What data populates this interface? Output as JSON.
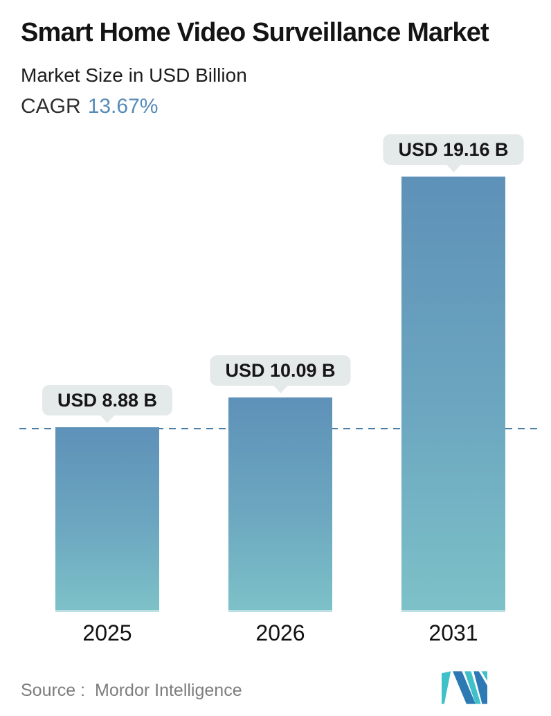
{
  "header": {
    "title": "Smart Home Video Surveillance Market",
    "subtitle": "Market Size in USD Billion",
    "cagr_label": "CAGR",
    "cagr_value": "13.67%"
  },
  "chart_data": {
    "type": "bar",
    "title": "Smart Home Video Surveillance Market",
    "subtitle": "Market Size in USD Billion",
    "unit": "USD Billion",
    "cagr_percent": 13.67,
    "categories": [
      "2025",
      "2026",
      "2031"
    ],
    "values": [
      8.88,
      10.09,
      19.16
    ],
    "points": [
      {
        "year": "2025",
        "value": 8.88,
        "label": "USD 8.88 B"
      },
      {
        "year": "2026",
        "value": 10.09,
        "label": "USD 10.09 B"
      },
      {
        "year": "2031",
        "value": 19.16,
        "label": "USD 19.16 B"
      }
    ],
    "reference_line": {
      "style": "dashed",
      "at_value": 8.88
    },
    "layout": {
      "grid": false,
      "axis_labels_hidden": true,
      "value_labels": "callout bubbles above bars",
      "bar_gradient": [
        "#5E91B8",
        "#7DC1C8"
      ]
    }
  },
  "footer": {
    "source": "Source :  Mordor Intelligence"
  },
  "colors": {
    "bar_top": "#5E91B8",
    "bar_bottom": "#7DC1C8",
    "bubble_bg": "#E4E9E9",
    "dashed_line": "#4B7EA6",
    "cagr_value": "#5589B9",
    "source_text": "#7D7D7D",
    "logo_teal": "#40C0C8",
    "logo_blue": "#2C79B4"
  }
}
